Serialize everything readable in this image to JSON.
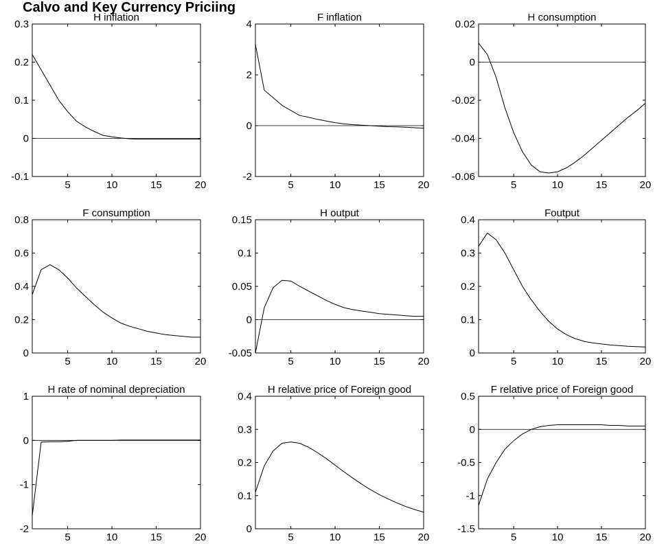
{
  "title": "Calvo and Key Currency Priciing",
  "colors": {
    "line": "#000000",
    "zero_line": "#000000",
    "background": "#ffffff"
  },
  "chart_data": [
    {
      "type": "line",
      "title": "H inflation",
      "xlim": [
        1,
        20
      ],
      "ylim": [
        -0.1,
        0.3
      ],
      "xticks": [
        5,
        10,
        15,
        20
      ],
      "yticks": [
        -0.1,
        0,
        0.1,
        0.2,
        0.3
      ],
      "ytick_labels": [
        "-0.1",
        "0",
        "0.1",
        "0.2",
        "0.3"
      ],
      "zero_line": true,
      "x": [
        1,
        2,
        3,
        4,
        5,
        6,
        7,
        8,
        9,
        10,
        11,
        12,
        13,
        14,
        15,
        16,
        17,
        18,
        19,
        20
      ],
      "y": [
        0.22,
        0.18,
        0.14,
        0.1,
        0.07,
        0.045,
        0.03,
        0.018,
        0.008,
        0.004,
        0.001,
        -0.001,
        -0.002,
        -0.002,
        -0.002,
        -0.002,
        -0.002,
        -0.002,
        -0.002,
        -0.002
      ]
    },
    {
      "type": "line",
      "title": "F inflation",
      "xlim": [
        1,
        20
      ],
      "ylim": [
        -2,
        4
      ],
      "xticks": [
        5,
        10,
        15,
        20
      ],
      "yticks": [
        -2,
        0,
        2,
        4
      ],
      "ytick_labels": [
        "-2",
        "0",
        "2",
        "4"
      ],
      "zero_line": true,
      "x": [
        1,
        2,
        3,
        4,
        5,
        6,
        7,
        8,
        9,
        10,
        11,
        12,
        13,
        14,
        15,
        16,
        17,
        18,
        19,
        20
      ],
      "y": [
        3.2,
        1.4,
        1.1,
        0.8,
        0.6,
        0.4,
        0.33,
        0.25,
        0.18,
        0.12,
        0.07,
        0.04,
        0.02,
        0.0,
        -0.02,
        -0.04,
        -0.05,
        -0.06,
        -0.08,
        -0.1
      ]
    },
    {
      "type": "line",
      "title": "H consumption",
      "xlim": [
        1,
        20
      ],
      "ylim": [
        -0.06,
        0.02
      ],
      "xticks": [
        5,
        10,
        15,
        20
      ],
      "yticks": [
        -0.06,
        -0.04,
        -0.02,
        0,
        0.02
      ],
      "ytick_labels": [
        "-0.06",
        "-0.04",
        "-0.02",
        "0",
        "0.02"
      ],
      "zero_line": true,
      "x": [
        1,
        2,
        3,
        4,
        5,
        6,
        7,
        8,
        9,
        10,
        11,
        12,
        13,
        14,
        15,
        16,
        17,
        18,
        19,
        20
      ],
      "y": [
        0.01,
        0.004,
        -0.008,
        -0.024,
        -0.037,
        -0.047,
        -0.054,
        -0.0575,
        -0.0582,
        -0.0575,
        -0.0555,
        -0.0525,
        -0.049,
        -0.045,
        -0.041,
        -0.037,
        -0.033,
        -0.029,
        -0.0255,
        -0.0215
      ]
    },
    {
      "type": "line",
      "title": "F consumption",
      "xlim": [
        1,
        20
      ],
      "ylim": [
        0,
        0.8
      ],
      "xticks": [
        5,
        10,
        15,
        20
      ],
      "yticks": [
        0,
        0.2,
        0.4,
        0.6,
        0.8
      ],
      "ytick_labels": [
        "0",
        "0.2",
        "0.4",
        "0.6",
        "0.8"
      ],
      "zero_line": false,
      "x": [
        1,
        2,
        3,
        4,
        5,
        6,
        7,
        8,
        9,
        10,
        11,
        12,
        13,
        14,
        15,
        16,
        17,
        18,
        19,
        20
      ],
      "y": [
        0.35,
        0.5,
        0.53,
        0.5,
        0.45,
        0.39,
        0.34,
        0.29,
        0.245,
        0.21,
        0.18,
        0.16,
        0.145,
        0.13,
        0.12,
        0.11,
        0.105,
        0.1,
        0.095,
        0.095
      ]
    },
    {
      "type": "line",
      "title": "H output",
      "xlim": [
        1,
        20
      ],
      "ylim": [
        -0.05,
        0.15
      ],
      "xticks": [
        5,
        10,
        15,
        20
      ],
      "yticks": [
        -0.05,
        0,
        0.05,
        0.1,
        0.15
      ],
      "ytick_labels": [
        "-0.05",
        "0",
        "0.05",
        "0.1",
        "0.15"
      ],
      "zero_line": true,
      "x": [
        1,
        2,
        3,
        4,
        5,
        6,
        7,
        8,
        9,
        10,
        11,
        12,
        13,
        14,
        15,
        16,
        17,
        18,
        19,
        20
      ],
      "y": [
        -0.05,
        0.018,
        0.048,
        0.059,
        0.058,
        0.05,
        0.043,
        0.036,
        0.029,
        0.023,
        0.018,
        0.015,
        0.013,
        0.011,
        0.009,
        0.008,
        0.007,
        0.006,
        0.005,
        0.005
      ]
    },
    {
      "type": "line",
      "title": "Foutput",
      "xlim": [
        1,
        20
      ],
      "ylim": [
        0,
        0.4
      ],
      "xticks": [
        5,
        10,
        15,
        20
      ],
      "yticks": [
        0,
        0.1,
        0.2,
        0.3,
        0.4
      ],
      "ytick_labels": [
        "0",
        "0.1",
        "0.2",
        "0.3",
        "0.4"
      ],
      "zero_line": false,
      "x": [
        1,
        2,
        3,
        4,
        5,
        6,
        7,
        8,
        9,
        10,
        11,
        12,
        13,
        14,
        15,
        16,
        17,
        18,
        19,
        20
      ],
      "y": [
        0.32,
        0.36,
        0.34,
        0.3,
        0.25,
        0.2,
        0.16,
        0.125,
        0.095,
        0.072,
        0.055,
        0.043,
        0.035,
        0.03,
        0.027,
        0.024,
        0.022,
        0.02,
        0.019,
        0.018
      ]
    },
    {
      "type": "line",
      "title": "H rate of nominal depreciation",
      "xlim": [
        1,
        20
      ],
      "ylim": [
        -2,
        1
      ],
      "xticks": [
        5,
        10,
        15,
        20
      ],
      "yticks": [
        -2,
        -1,
        0,
        1
      ],
      "ytick_labels": [
        "-2",
        "-1",
        "0",
        "1"
      ],
      "zero_line": true,
      "x": [
        1,
        2,
        3,
        4,
        5,
        6,
        7,
        8,
        9,
        10,
        11,
        12,
        13,
        14,
        15,
        16,
        17,
        18,
        19,
        20
      ],
      "y": [
        -1.7,
        -0.04,
        -0.03,
        -0.03,
        -0.02,
        0.0,
        0.0,
        0.0,
        0.0,
        0.0,
        0.01,
        0.01,
        0.01,
        0.01,
        0.01,
        0.01,
        0.01,
        0.01,
        0.01,
        0.01
      ]
    },
    {
      "type": "line",
      "title": "H relative price of Foreign good",
      "xlim": [
        1,
        20
      ],
      "ylim": [
        0,
        0.4
      ],
      "xticks": [
        5,
        10,
        15,
        20
      ],
      "yticks": [
        0,
        0.1,
        0.2,
        0.3,
        0.4
      ],
      "ytick_labels": [
        "0",
        "0.1",
        "0.2",
        "0.3",
        "0.4"
      ],
      "zero_line": false,
      "x": [
        1,
        2,
        3,
        4,
        5,
        6,
        7,
        8,
        9,
        10,
        11,
        12,
        13,
        14,
        15,
        16,
        17,
        18,
        19,
        20
      ],
      "y": [
        0.11,
        0.19,
        0.235,
        0.258,
        0.262,
        0.258,
        0.246,
        0.23,
        0.212,
        0.192,
        0.172,
        0.153,
        0.135,
        0.118,
        0.103,
        0.09,
        0.078,
        0.067,
        0.058,
        0.05
      ]
    },
    {
      "type": "line",
      "title": "F relative price of Foreign good",
      "xlim": [
        1,
        20
      ],
      "ylim": [
        -1.5,
        0.5
      ],
      "xticks": [
        5,
        10,
        15,
        20
      ],
      "yticks": [
        -1.5,
        -1,
        -0.5,
        0,
        0.5
      ],
      "ytick_labels": [
        "-1.5",
        "-1",
        "-0.5",
        "0",
        "0.5"
      ],
      "zero_line": true,
      "x": [
        1,
        2,
        3,
        4,
        5,
        6,
        7,
        8,
        9,
        10,
        11,
        12,
        13,
        14,
        15,
        16,
        17,
        18,
        19,
        20
      ],
      "y": [
        -1.15,
        -0.75,
        -0.5,
        -0.3,
        -0.17,
        -0.07,
        0.0,
        0.04,
        0.06,
        0.07,
        0.07,
        0.07,
        0.07,
        0.07,
        0.07,
        0.06,
        0.06,
        0.05,
        0.05,
        0.05
      ]
    }
  ]
}
